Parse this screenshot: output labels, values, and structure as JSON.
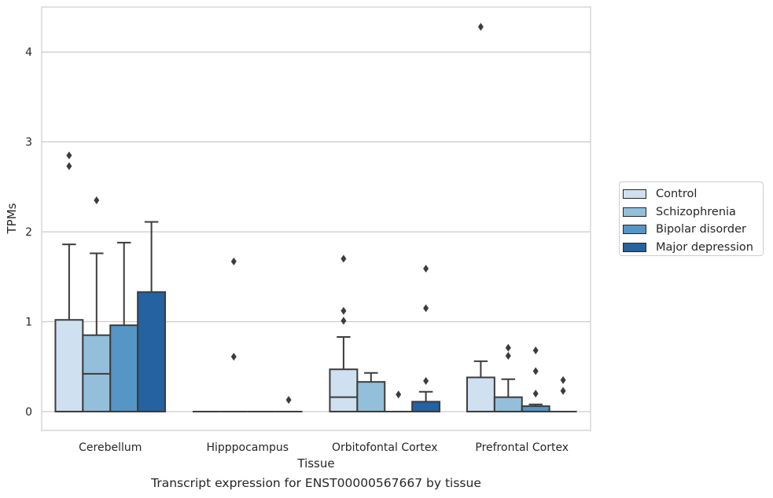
{
  "chart_data": {
    "type": "box",
    "xlabel": "Tissue",
    "ylabel": "TPMs",
    "caption": "Transcript expression for ENST00000567667 by tissue",
    "ylim": [
      -0.21,
      4.5
    ],
    "yticks": [
      0,
      1,
      2,
      3,
      4
    ],
    "grid": true,
    "legend_position": "right",
    "categories": [
      "Cerebellum",
      "Hipppocampus",
      "Orbitofontal Cortex",
      "Prefrontal Cortex"
    ],
    "series": [
      {
        "name": "Control",
        "color": "#cfe0f0",
        "boxes": [
          {
            "q1": 0,
            "median": 0,
            "q3": 1.02,
            "whisker_low": 0,
            "whisker_high": 1.86,
            "outliers": [
              2.73,
              2.85
            ]
          },
          {
            "q1": 0,
            "median": 0,
            "q3": 0,
            "whisker_low": 0,
            "whisker_high": 0,
            "outliers": []
          },
          {
            "q1": 0,
            "median": 0.16,
            "q3": 0.47,
            "whisker_low": 0,
            "whisker_high": 0.83,
            "outliers": [
              1.01,
              1.12,
              1.7
            ]
          },
          {
            "q1": 0,
            "median": 0,
            "q3": 0.38,
            "whisker_low": 0,
            "whisker_high": 0.56,
            "outliers": [
              4.28
            ]
          }
        ]
      },
      {
        "name": "Schizophrenia",
        "color": "#93bfdb",
        "boxes": [
          {
            "q1": 0,
            "median": 0.42,
            "q3": 0.85,
            "whisker_low": 0,
            "whisker_high": 1.76,
            "outliers": [
              2.35
            ]
          },
          {
            "q1": 0,
            "median": 0,
            "q3": 0,
            "whisker_low": 0,
            "whisker_high": 0,
            "outliers": [
              0.61,
              1.67
            ]
          },
          {
            "q1": 0,
            "median": 0,
            "q3": 0.33,
            "whisker_low": 0,
            "whisker_high": 0.43,
            "outliers": []
          },
          {
            "q1": 0,
            "median": 0,
            "q3": 0.16,
            "whisker_low": 0,
            "whisker_high": 0.36,
            "outliers": [
              0.62,
              0.71
            ]
          }
        ]
      },
      {
        "name": "Bipolar disorder",
        "color": "#5596c6",
        "boxes": [
          {
            "q1": 0,
            "median": 0,
            "q3": 0.96,
            "whisker_low": 0,
            "whisker_high": 1.88,
            "outliers": []
          },
          {
            "q1": 0,
            "median": 0,
            "q3": 0,
            "whisker_low": 0,
            "whisker_high": 0,
            "outliers": []
          },
          {
            "q1": 0,
            "median": 0,
            "q3": 0,
            "whisker_low": 0,
            "whisker_high": 0,
            "outliers": [
              0.19
            ]
          },
          {
            "q1": 0,
            "median": 0,
            "q3": 0.06,
            "whisker_low": 0,
            "whisker_high": 0.08,
            "outliers": [
              0.2,
              0.45,
              0.68
            ]
          }
        ]
      },
      {
        "name": "Major depression",
        "color": "#2462a1",
        "boxes": [
          {
            "q1": 0,
            "median": 0,
            "q3": 1.33,
            "whisker_low": 0,
            "whisker_high": 2.11,
            "outliers": []
          },
          {
            "q1": 0,
            "median": 0,
            "q3": 0,
            "whisker_low": 0,
            "whisker_high": 0,
            "outliers": [
              0.13
            ]
          },
          {
            "q1": 0,
            "median": 0,
            "q3": 0.11,
            "whisker_low": 0,
            "whisker_high": 0.22,
            "outliers": [
              0.34,
              1.15,
              1.59
            ]
          },
          {
            "q1": 0,
            "median": 0,
            "q3": 0,
            "whisker_low": 0,
            "whisker_high": 0,
            "outliers": [
              0.23,
              0.35
            ]
          }
        ]
      }
    ]
  }
}
